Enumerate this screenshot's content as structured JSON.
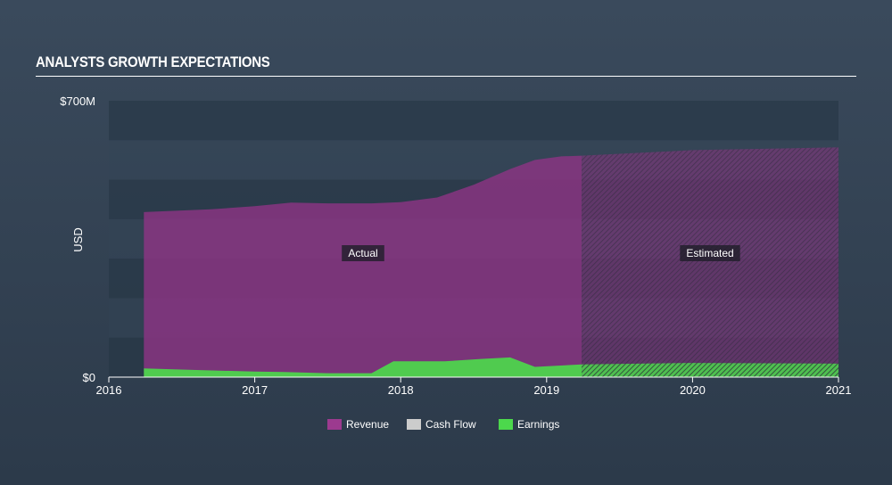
{
  "header": {
    "title": "ANALYSTS GROWTH EXPECTATIONS"
  },
  "chart_data": {
    "type": "area",
    "title": "ANALYSTS GROWTH EXPECTATIONS",
    "ylabel": "USD",
    "ylim": [
      0,
      700
    ],
    "xlim": [
      2016,
      2021.0
    ],
    "y_tick_labels": [
      "$0",
      "$700M"
    ],
    "y_ticks": [
      0,
      700
    ],
    "x_ticks": [
      2016,
      2017,
      2018,
      2019,
      2020,
      2021
    ],
    "x_tick_labels": [
      "2016",
      "2017",
      "2018",
      "2019",
      "2020",
      "2021"
    ],
    "actual_end": 2019.24,
    "region_labels": {
      "actual": "Actual",
      "estimated": "Estimated"
    },
    "series": [
      {
        "name": "Revenue",
        "color": "#9c3a8f",
        "points": [
          [
            2016.24,
            418
          ],
          [
            2016.7,
            425
          ],
          [
            2017.0,
            433
          ],
          [
            2017.25,
            442
          ],
          [
            2017.5,
            440
          ],
          [
            2017.8,
            440
          ],
          [
            2018.0,
            443
          ],
          [
            2018.25,
            455
          ],
          [
            2018.5,
            487
          ],
          [
            2018.75,
            527
          ],
          [
            2018.92,
            550
          ],
          [
            2019.1,
            559
          ],
          [
            2019.24,
            561
          ],
          [
            2020.0,
            575
          ],
          [
            2021.0,
            582
          ]
        ]
      },
      {
        "name": "Cash Flow",
        "color": "#cccccc",
        "points": []
      },
      {
        "name": "Earnings",
        "color": "#4cd84c",
        "points": [
          [
            2016.24,
            22
          ],
          [
            2016.6,
            18
          ],
          [
            2017.0,
            14
          ],
          [
            2017.2,
            13
          ],
          [
            2017.5,
            10
          ],
          [
            2017.8,
            10
          ],
          [
            2017.95,
            40
          ],
          [
            2018.3,
            40
          ],
          [
            2018.55,
            46
          ],
          [
            2018.75,
            50
          ],
          [
            2018.92,
            26
          ],
          [
            2019.24,
            32
          ],
          [
            2020.0,
            36
          ],
          [
            2021.0,
            34
          ]
        ]
      }
    ],
    "legend": [
      {
        "name": "Revenue",
        "color": "#9c3a8f"
      },
      {
        "name": "Cash Flow",
        "color": "#cccccc"
      },
      {
        "name": "Earnings",
        "color": "#4cd84c"
      }
    ],
    "legend_position": "bottom-center"
  }
}
